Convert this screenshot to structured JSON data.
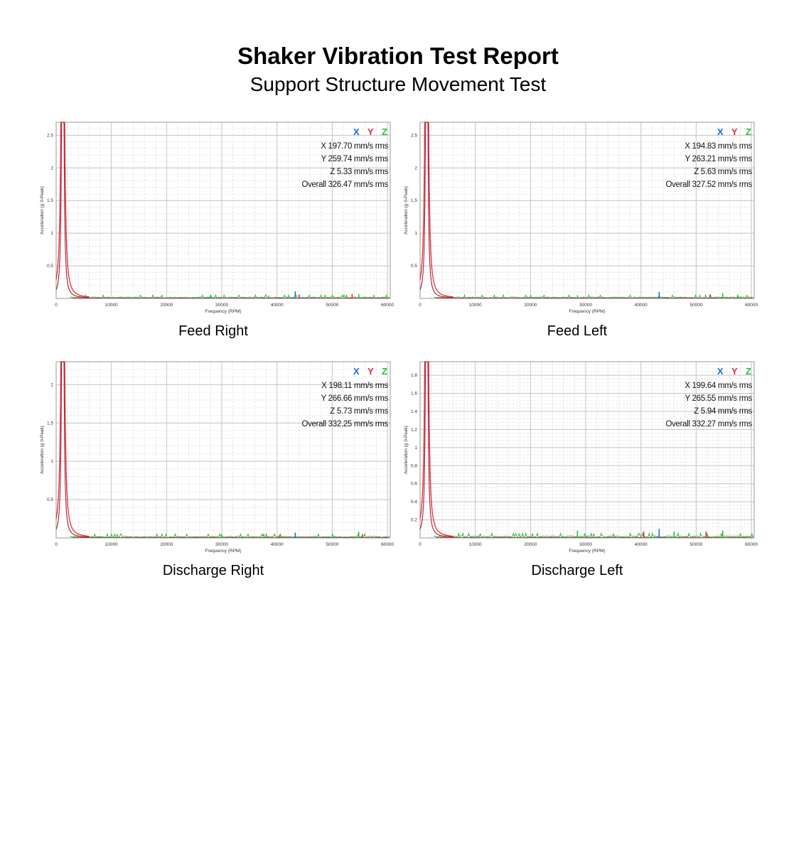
{
  "header": {
    "title": "Shaker Vibration Test Report",
    "subtitle": "Support Structure Movement Test"
  },
  "colors": {
    "x": "#1a6fe0",
    "y": "#e53030",
    "z": "#22c040",
    "peak": "#a0203a"
  },
  "chart_data": [
    {
      "type": "line",
      "caption": "Feed Right",
      "xlabel": "Frequency (RPM)",
      "ylabel": "Acceleration (g 0-Peak)",
      "xlim": [
        0,
        60500
      ],
      "ylim": [
        0,
        2.7
      ],
      "xticks": [
        0,
        10000,
        20000,
        30000,
        40000,
        50000,
        60000
      ],
      "yticks": [
        0.5,
        1,
        1.5,
        2,
        2.5
      ],
      "legend": [
        "X",
        "Y",
        "Z"
      ],
      "stats": [
        "X 197.70 mm/s rms",
        "Y 259.74 mm/s rms",
        "Z 5.33 mm/s rms",
        "Overall 326.47 mm/s rms"
      ],
      "peak_rpm": 1200,
      "baseline": 0.03,
      "spikes": [
        {
          "series": "x",
          "x": 43300,
          "y": 0.11
        },
        {
          "series": "y",
          "x": 44000,
          "y": 0.06
        },
        {
          "series": "y",
          "x": 53600,
          "y": 0.07
        },
        {
          "series": "z",
          "x": 54800,
          "y": 0.07
        },
        {
          "series": "z",
          "x": 38500,
          "y": 0.04
        },
        {
          "series": "z",
          "x": 28000,
          "y": 0.05
        }
      ]
    },
    {
      "type": "line",
      "caption": "Feed Left",
      "xlabel": "Frequency (RPM)",
      "ylabel": "Acceleration (g 0-Peak)",
      "xlim": [
        0,
        60500
      ],
      "ylim": [
        0,
        2.7
      ],
      "xticks": [
        0,
        10000,
        20000,
        30000,
        40000,
        50000,
        60000
      ],
      "yticks": [
        0.5,
        1,
        1.5,
        2,
        2.5
      ],
      "legend": [
        "X",
        "Y",
        "Z"
      ],
      "stats": [
        "X 194.83 mm/s rms",
        "Y 263.21 mm/s rms",
        "Z 5.63 mm/s rms",
        "Overall 327.52 mm/s rms"
      ],
      "peak_rpm": 1200,
      "baseline": 0.03,
      "spikes": [
        {
          "series": "x",
          "x": 43300,
          "y": 0.1
        },
        {
          "series": "y",
          "x": 52500,
          "y": 0.06
        },
        {
          "series": "z",
          "x": 54800,
          "y": 0.08
        },
        {
          "series": "z",
          "x": 28500,
          "y": 0.05
        },
        {
          "series": "z",
          "x": 57500,
          "y": 0.05
        }
      ]
    },
    {
      "type": "line",
      "caption": "Discharge Right",
      "xlabel": "Frequency (RPM)",
      "ylabel": "Acceleration (g 0-Peak)",
      "xlim": [
        0,
        60500
      ],
      "ylim": [
        0,
        2.3
      ],
      "xticks": [
        0,
        10000,
        20000,
        30000,
        40000,
        50000,
        60000
      ],
      "yticks": [
        0.5,
        1,
        1.5,
        2
      ],
      "legend": [
        "X",
        "Y",
        "Z"
      ],
      "stats": [
        "X 198.11 mm/s rms",
        "Y 266.66 mm/s rms",
        "Z 5.73 mm/s rms",
        "Overall 332.25 mm/s rms"
      ],
      "peak_rpm": 1200,
      "baseline": 0.03,
      "spikes": [
        {
          "series": "x",
          "x": 43300,
          "y": 0.07
        },
        {
          "series": "y",
          "x": 40500,
          "y": 0.04
        },
        {
          "series": "z",
          "x": 54800,
          "y": 0.08
        },
        {
          "series": "z",
          "x": 30000,
          "y": 0.05
        },
        {
          "series": "y",
          "x": 55500,
          "y": 0.05
        }
      ]
    },
    {
      "type": "line",
      "caption": "Discharge Left",
      "xlabel": "Frequency (RPM)",
      "ylabel": "Acceleration (g 0-Peak)",
      "xlim": [
        0,
        60500
      ],
      "ylim": [
        0,
        1.95
      ],
      "xticks": [
        0,
        10000,
        20000,
        30000,
        40000,
        50000,
        60000
      ],
      "yticks": [
        0.2,
        0.4,
        0.6,
        0.8,
        1,
        1.2,
        1.4,
        1.6,
        1.8
      ],
      "legend": [
        "X",
        "Y",
        "Z"
      ],
      "stats": [
        "X 199.64 mm/s rms",
        "Y 265.55 mm/s rms",
        "Z 5.94 mm/s rms",
        "Overall 332.27 mm/s rms"
      ],
      "peak_rpm": 1200,
      "baseline": 0.03,
      "spikes": [
        {
          "series": "x",
          "x": 43300,
          "y": 0.1
        },
        {
          "series": "y",
          "x": 40500,
          "y": 0.07
        },
        {
          "series": "y",
          "x": 51800,
          "y": 0.07
        },
        {
          "series": "z",
          "x": 28500,
          "y": 0.08
        },
        {
          "series": "z",
          "x": 46000,
          "y": 0.07
        },
        {
          "series": "z",
          "x": 54800,
          "y": 0.08
        }
      ]
    }
  ]
}
